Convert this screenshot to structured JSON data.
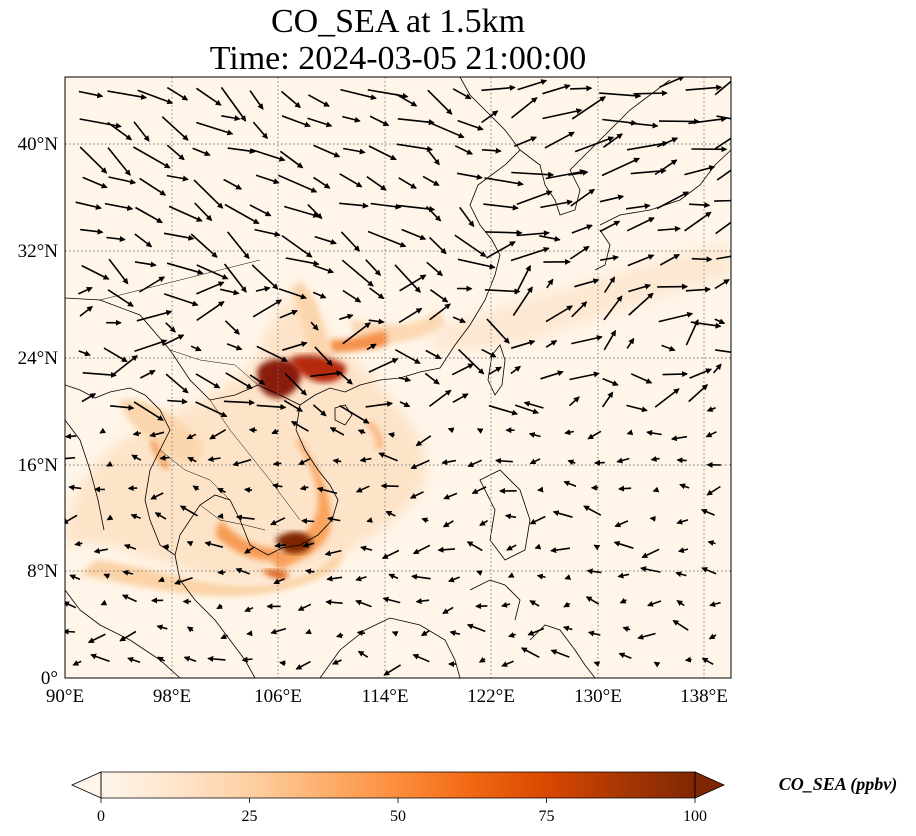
{
  "title": {
    "line1": "CO_SEA at 1.5km",
    "line2": "Time: 2024-03-05 21:00:00"
  },
  "map": {
    "projection": "PlateCarree",
    "lon_range": [
      90,
      140
    ],
    "lat_range": [
      0,
      45
    ],
    "gridlines": "dotted",
    "x_ticks": [
      "90°E",
      "98°E",
      "106°E",
      "114°E",
      "122°E",
      "130°E",
      "138°E"
    ],
    "y_ticks": [
      "0°",
      "8°N",
      "16°N",
      "24°N",
      "32°N",
      "40°N"
    ],
    "ocean_color": "#fff5e8"
  },
  "colorbar": {
    "label": "CO_SEA (ppbv)",
    "ticks": [
      "0",
      "25",
      "50",
      "75",
      "100"
    ],
    "range": [
      0,
      100
    ],
    "colors": [
      "#fff5eb",
      "#fee6ce",
      "#fdd0a2",
      "#fdae6b",
      "#fd8d3c",
      "#f16913",
      "#d94801",
      "#a63603",
      "#7f2704"
    ],
    "extend": "both"
  }
}
